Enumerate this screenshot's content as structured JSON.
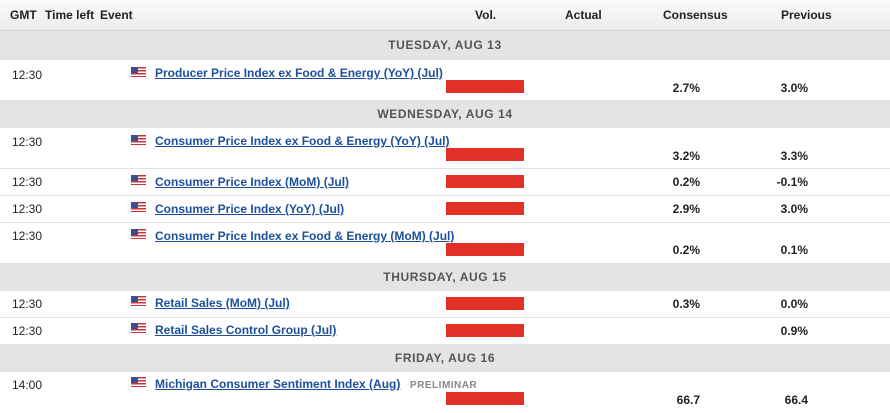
{
  "header": {
    "gmt": "GMT",
    "time_left": "Time left",
    "event": "Event",
    "vol": "Vol.",
    "actual": "Actual",
    "consensus": "Consensus",
    "previous": "Previous"
  },
  "days": [
    {
      "label": "TUESDAY, AUG 13"
    },
    {
      "label": "WEDNESDAY, AUG 14"
    },
    {
      "label": "THURSDAY, AUG 15"
    },
    {
      "label": "FRIDAY, AUG 16"
    }
  ],
  "events": [
    {
      "time": "12:30",
      "name": "Producer Price Index ex Food & Energy (YoY) (Jul)",
      "consensus": "2.7%",
      "previous": "3.0%",
      "volatility": "high",
      "flag": "us-flag-icon"
    },
    {
      "time": "12:30",
      "name": "Consumer Price Index ex Food & Energy (YoY) (Jul)",
      "consensus": "3.2%",
      "previous": "3.3%",
      "volatility": "high",
      "flag": "us-flag-icon"
    },
    {
      "time": "12:30",
      "name": "Consumer Price Index (MoM) (Jul)",
      "consensus": "0.2%",
      "previous": "-0.1%",
      "volatility": "high",
      "flag": "us-flag-icon"
    },
    {
      "time": "12:30",
      "name": "Consumer Price Index (YoY) (Jul)",
      "consensus": "2.9%",
      "previous": "3.0%",
      "volatility": "high",
      "flag": "us-flag-icon"
    },
    {
      "time": "12:30",
      "name": "Consumer Price Index ex Food & Energy (MoM) (Jul)",
      "consensus": "0.2%",
      "previous": "0.1%",
      "volatility": "high",
      "flag": "us-flag-icon"
    },
    {
      "time": "12:30",
      "name": "Retail Sales (MoM) (Jul)",
      "consensus": "0.3%",
      "previous": "0.0%",
      "volatility": "high",
      "flag": "us-flag-icon"
    },
    {
      "time": "12:30",
      "name": "Retail Sales Control Group (Jul)",
      "consensus": "",
      "previous": "0.9%",
      "volatility": "high",
      "flag": "us-flag-icon"
    },
    {
      "time": "14:00",
      "name": "Michigan Consumer Sentiment Index (Aug)",
      "tag": "PRELIMINAR",
      "consensus": "66.7",
      "previous": "66.4",
      "volatility": "high",
      "flag": "us-flag-icon"
    }
  ],
  "colors": {
    "volatility_high": "#e13127",
    "link": "#1c4f9c",
    "day_band": "#e4e4e4"
  }
}
